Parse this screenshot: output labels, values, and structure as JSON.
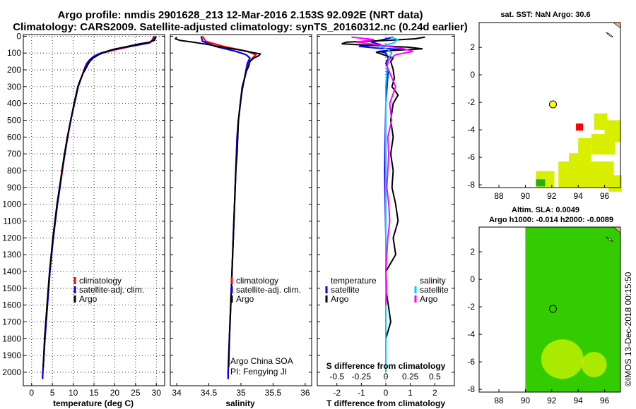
{
  "header": {
    "title_line1": "Argo profile: nmdis 2901628_213 12-Mar-2016 2.153S 92.092E (NRT data)",
    "title_line2": "Climatology: CARS2009. Satellite-adjusted climatology: synTS_20160312.nc (0.24d earlier)"
  },
  "colors": {
    "climatology": "#ff0000",
    "satellite": "#0000ff",
    "argo": "#000000",
    "salinity_satellite": "#00ccff",
    "salinity_argo": "#ff00ff",
    "sst_patch": "#d8f000",
    "argo_marker": "#ffff00",
    "current_marker": "#ff0000",
    "sla_map": "#33cc00"
  },
  "depth_axis": {
    "ticks": [
      "0",
      "100",
      "200",
      "300",
      "400",
      "500",
      "600",
      "700",
      "800",
      "900",
      "1000",
      "1100",
      "1200",
      "1300",
      "1400",
      "1500",
      "1600",
      "1700",
      "1800",
      "1900",
      "2000"
    ]
  },
  "chart_data": [
    {
      "type": "line",
      "panel": "temperature",
      "xlabel": "temperature (deg C)",
      "xlim": [
        -2,
        32
      ],
      "ylim": [
        2080,
        -10
      ],
      "xticks": [
        "0",
        "5",
        "10",
        "15",
        "20",
        "25",
        "30"
      ],
      "legend": [
        "climatology",
        "satellite-adj. clim.",
        "Argo"
      ],
      "series": [
        {
          "name": "climatology",
          "depth": [
            0,
            20,
            40,
            60,
            80,
            100,
            120,
            140,
            160,
            180,
            200,
            250,
            300,
            400,
            500,
            600,
            700,
            800,
            900,
            1000,
            1200,
            1400,
            1600,
            1800,
            2000,
            2040
          ],
          "values": [
            29.4,
            29.1,
            28.3,
            24.0,
            20.2,
            17.0,
            15.0,
            14.0,
            13.3,
            12.9,
            12.6,
            11.9,
            11.2,
            10.3,
            9.4,
            8.7,
            8.0,
            7.4,
            6.8,
            6.2,
            5.2,
            4.4,
            3.8,
            3.2,
            2.7,
            2.6
          ]
        },
        {
          "name": "satellite-adj. clim.",
          "depth": [
            0,
            20,
            40,
            60,
            80,
            100,
            120,
            140,
            160,
            180,
            200,
            250,
            300,
            400,
            500,
            600,
            700,
            800,
            900,
            1000,
            1200,
            1400,
            1600,
            1800,
            2000,
            2040
          ],
          "values": [
            29.8,
            29.3,
            28.4,
            23.6,
            19.6,
            16.7,
            14.9,
            14.0,
            13.4,
            13.0,
            12.7,
            11.9,
            11.2,
            10.3,
            9.4,
            8.6,
            8.0,
            7.3,
            6.8,
            6.2,
            5.2,
            4.4,
            3.8,
            3.2,
            2.7,
            2.6
          ]
        },
        {
          "name": "Argo",
          "depth": [
            5,
            15,
            25,
            35,
            45,
            55,
            65,
            75,
            85,
            95,
            110,
            130,
            150,
            170,
            190,
            220,
            260,
            300,
            400,
            500,
            600,
            700,
            800,
            900,
            1000,
            1200,
            1400,
            1600,
            1800,
            1970
          ],
          "values": [
            29.9,
            29.7,
            29.5,
            28.4,
            26.0,
            24.1,
            22.3,
            20.1,
            18.7,
            17.6,
            16.1,
            14.8,
            14.0,
            13.5,
            13.1,
            12.4,
            11.7,
            11.1,
            10.2,
            9.4,
            8.6,
            7.9,
            7.3,
            6.7,
            6.1,
            5.1,
            4.3,
            3.7,
            3.1,
            2.8
          ]
        }
      ]
    },
    {
      "type": "line",
      "panel": "salinity",
      "xlabel": "salinity",
      "xlim": [
        33.9,
        36.1
      ],
      "ylim": [
        2080,
        -10
      ],
      "xticks": [
        "34",
        "34.5",
        "35",
        "35.5",
        "36"
      ],
      "legend": [
        "climatology",
        "satellite-adj. clim.",
        "Argo"
      ],
      "annotation": [
        "Argo China SOA",
        "PI: Fengying JI"
      ],
      "series": [
        {
          "name": "climatology",
          "depth": [
            0,
            30,
            60,
            90,
            110,
            130,
            160,
            200,
            260,
            300,
            400,
            500,
            600,
            700,
            800,
            1000,
            1200,
            1400,
            1600,
            1800,
            2000,
            2040
          ],
          "values": [
            34.4,
            34.45,
            34.72,
            35.1,
            35.23,
            35.18,
            35.12,
            35.09,
            35.05,
            35.02,
            34.99,
            34.96,
            34.94,
            34.93,
            34.92,
            34.9,
            34.88,
            34.86,
            34.84,
            34.82,
            34.8,
            34.8
          ]
        },
        {
          "name": "satellite-adj. clim.",
          "depth": [
            0,
            30,
            60,
            90,
            110,
            130,
            160,
            200,
            260,
            300,
            400,
            500,
            600,
            700,
            800,
            1000,
            1200,
            1400,
            1600,
            1800,
            2000,
            2040
          ],
          "values": [
            34.38,
            34.4,
            34.6,
            34.92,
            35.08,
            35.14,
            35.1,
            35.08,
            35.05,
            35.02,
            34.99,
            34.96,
            34.94,
            34.93,
            34.92,
            34.9,
            34.88,
            34.86,
            34.84,
            34.82,
            34.8,
            34.8
          ]
        },
        {
          "name": "Argo",
          "depth": [
            5,
            15,
            25,
            35,
            50,
            65,
            80,
            95,
            105,
            115,
            130,
            150,
            180,
            210,
            260,
            320,
            400,
            500,
            600,
            700,
            800,
            900,
            1000,
            1200,
            1400,
            1600,
            1800,
            1970
          ],
          "values": [
            34.0,
            33.98,
            34.05,
            34.25,
            34.5,
            34.7,
            34.95,
            35.15,
            35.3,
            35.28,
            35.2,
            35.14,
            35.12,
            35.08,
            35.05,
            35.02,
            34.99,
            34.96,
            34.95,
            34.94,
            34.92,
            34.91,
            34.9,
            34.88,
            34.86,
            34.84,
            34.82,
            34.81
          ]
        }
      ]
    },
    {
      "type": "line",
      "panel": "differences",
      "xlabel": "T difference from climatology",
      "xlim": [
        -2.8,
        2.8
      ],
      "ylim": [
        2080,
        -10
      ],
      "xticks": [
        "-2",
        "-1",
        "0",
        "1",
        "2"
      ],
      "s_xlabel": "S difference from climatology",
      "s_ticks": [
        "-0.5",
        "-0.25",
        "0",
        "0.25",
        "0.5"
      ],
      "legend": {
        "temperature_header": "temperature",
        "salinity_header": "salinity",
        "items": [
          "satellite",
          "Argo",
          "satellite",
          "Argo"
        ]
      },
      "series": [
        {
          "name": "temperature satellite",
          "depth": [
            5,
            20,
            35,
            50,
            60,
            70,
            80,
            90,
            100,
            130,
            160,
            200,
            400,
            800,
            1200,
            2000
          ],
          "values": [
            0.3,
            -0.1,
            -0.6,
            -0.2,
            -1.1,
            -0.4,
            0.8,
            -0.3,
            0.0,
            0.1,
            0.0,
            0.1,
            0.0,
            -0.05,
            0.0,
            0.0
          ]
        },
        {
          "name": "temperature Argo",
          "depth": [
            5,
            15,
            25,
            35,
            45,
            55,
            65,
            75,
            85,
            95,
            110,
            130,
            150,
            200,
            250,
            300,
            350,
            400,
            500,
            600,
            700,
            800,
            900,
            1000,
            1100,
            1200,
            1300,
            1400,
            1500,
            1600,
            1700,
            1800,
            1900,
            1970
          ],
          "values": [
            1.6,
            1.2,
            0.1,
            -1.6,
            -1.8,
            -0.5,
            0.9,
            1.5,
            0.2,
            -0.4,
            -0.1,
            0.3,
            0.2,
            0.3,
            0.35,
            0.25,
            0.5,
            0.3,
            0.2,
            0.3,
            0.2,
            0.3,
            0.25,
            0.4,
            0.5,
            0.3,
            0.4,
            0.0,
            0.0,
            0.1,
            0.2,
            0.0,
            0.0,
            0.0
          ]
        },
        {
          "name": "salinity satellite",
          "depth": [
            5,
            20,
            40,
            60,
            80,
            100,
            130,
            160,
            200,
            300,
            500,
            800,
            1200,
            1600,
            2000
          ],
          "values": [
            0.05,
            0.12,
            0.08,
            -0.05,
            0.02,
            0.06,
            0.03,
            0.02,
            0.01,
            0.0,
            0.0,
            0.0,
            0.0,
            0.0,
            0.0
          ]
        },
        {
          "name": "salinity Argo",
          "depth": [
            5,
            20,
            35,
            50,
            70,
            90,
            110,
            140,
            180,
            230,
            300,
            400,
            500,
            600,
            700,
            800,
            900,
            1000,
            1100,
            1200,
            1300,
            1400,
            1500,
            1600
          ],
          "values": [
            -0.35,
            -0.12,
            -0.3,
            -0.1,
            0.15,
            0.28,
            0.1,
            0.03,
            0.01,
            0.05,
            0.1,
            0.04,
            0.06,
            0.02,
            0.03,
            0.02,
            0.01,
            0.03,
            0.04,
            0.02,
            0.01,
            0.0,
            0.01,
            0.0
          ]
        }
      ]
    }
  ],
  "sst_map": {
    "title": "sat. SST: NaN Argo: 30.6",
    "xticks": [
      "88",
      "90",
      "92",
      "94",
      "96"
    ],
    "yticks": [
      "2",
      "0",
      "-2",
      "-4",
      "-6",
      "-8"
    ],
    "xlim": [
      86.5,
      97.2
    ],
    "ylim": [
      -8.2,
      3.8
    ],
    "argo_position": {
      "lon": 92.09,
      "lat": -2.15
    },
    "current_box": {
      "lon": 94.1,
      "lat": -3.8
    }
  },
  "sla_map": {
    "title_line1": "Altim. SLA: 0.0049",
    "title_line2": "Argo h1000: -0.014 h2000: -0.0089",
    "xticks": [
      "88",
      "90",
      "92",
      "94",
      "96"
    ],
    "yticks": [
      "2",
      "0",
      "-2",
      "-4",
      "-6",
      "-8"
    ],
    "xlim": [
      86.5,
      97.2
    ],
    "ylim": [
      -8.2,
      3.8
    ],
    "argo_position": {
      "lon": 92.09,
      "lat": -2.15
    }
  },
  "footer": {
    "credit": "©IMOS 13-Dec-2018 00:15:50"
  }
}
